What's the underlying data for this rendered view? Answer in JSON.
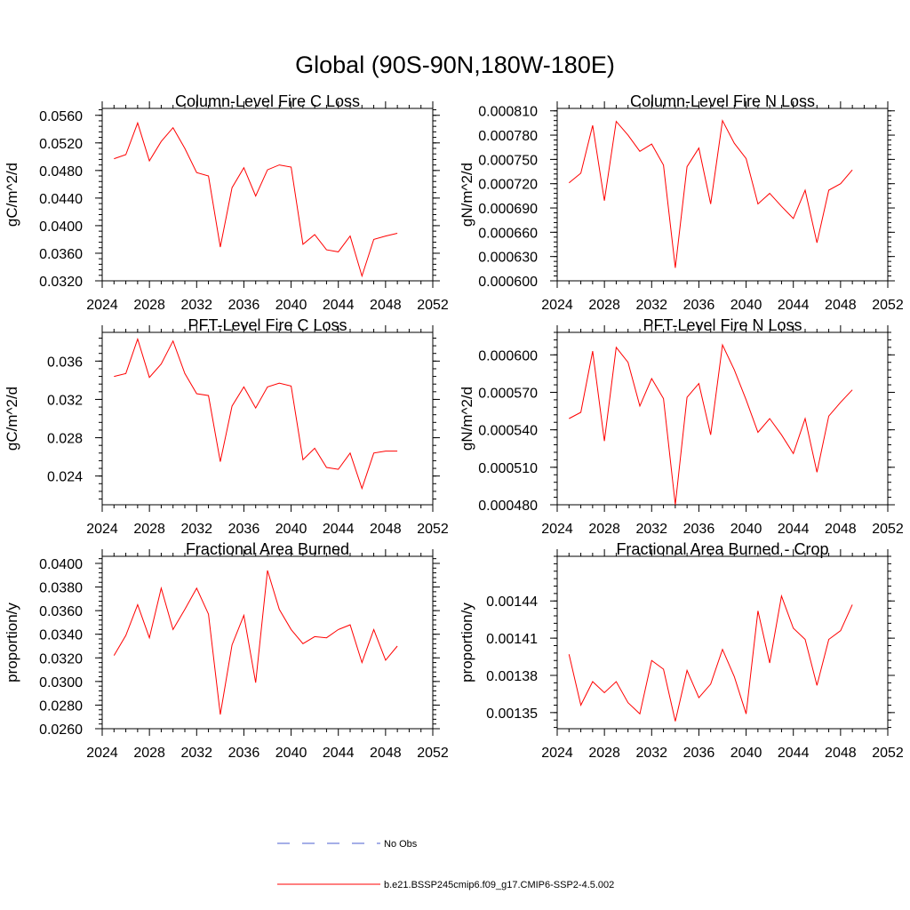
{
  "title": "Global (90S-90N,180W-180E)",
  "legend": [
    {
      "label": "No Obs",
      "color": "#4b5fd1",
      "dashed": true
    },
    {
      "label": "b.e21.BSSP245cmip6.f09_g17.CMIP6-SSP2-4.5.002",
      "color": "#ff0000",
      "dashed": false
    }
  ],
  "chart_data": [
    {
      "type": "line",
      "title": "Column-Level Fire C Loss",
      "xlabel": "",
      "ylabel": "gC/m^2/d",
      "xlim": [
        2024,
        2052
      ],
      "xticks": [
        2024,
        2028,
        2032,
        2036,
        2040,
        2044,
        2048,
        2052
      ],
      "ylim": [
        0.032,
        0.057
      ],
      "yticks": [
        0.032,
        0.036,
        0.04,
        0.044,
        0.048,
        0.052,
        0.056
      ],
      "ytick_labels": [
        "0.0320",
        "0.0360",
        "0.0400",
        "0.0440",
        "0.0480",
        "0.0520",
        "0.0560"
      ],
      "series": [
        {
          "name": "b.e21.BSSP245cmip6.f09_g17.CMIP6-SSP2-4.5.002",
          "x": [
            2025,
            2026,
            2027,
            2028,
            2029,
            2030,
            2031,
            2032,
            2033,
            2034,
            2035,
            2036,
            2037,
            2038,
            2039,
            2040,
            2041,
            2042,
            2043,
            2044,
            2045,
            2046,
            2047,
            2048,
            2049
          ],
          "y": [
            0.0497,
            0.0503,
            0.0549,
            0.0494,
            0.0522,
            0.0542,
            0.0512,
            0.0477,
            0.0472,
            0.0369,
            0.0455,
            0.0484,
            0.0443,
            0.0481,
            0.0488,
            0.0485,
            0.0373,
            0.0387,
            0.0365,
            0.0362,
            0.0385,
            0.0327,
            0.038,
            0.0385,
            0.0389
          ]
        }
      ]
    },
    {
      "type": "line",
      "title": "Column-Level Fire N Loss",
      "xlabel": "",
      "ylabel": "gN/m^2/d",
      "xlim": [
        2024,
        2052
      ],
      "xticks": [
        2024,
        2028,
        2032,
        2036,
        2040,
        2044,
        2048,
        2052
      ],
      "ylim": [
        0.0006,
        0.000813
      ],
      "yticks": [
        0.0006,
        0.00063,
        0.00066,
        0.00069,
        0.00072,
        0.00075,
        0.00078,
        0.00081
      ],
      "ytick_labels": [
        "0.000600",
        "0.000630",
        "0.000660",
        "0.000690",
        "0.000720",
        "0.000750",
        "0.000780",
        "0.000810"
      ],
      "series": [
        {
          "name": "b.e21.BSSP245cmip6.f09_g17.CMIP6-SSP2-4.5.002",
          "x": [
            2025,
            2026,
            2027,
            2028,
            2029,
            2030,
            2031,
            2032,
            2033,
            2034,
            2035,
            2036,
            2037,
            2038,
            2039,
            2040,
            2041,
            2042,
            2043,
            2044,
            2045,
            2046,
            2047,
            2048,
            2049
          ],
          "y": [
            0.000721,
            0.000733,
            0.000792,
            0.000699,
            0.000797,
            0.00078,
            0.00076,
            0.000769,
            0.000743,
            0.000616,
            0.000741,
            0.000764,
            0.000695,
            0.000798,
            0.00077,
            0.000751,
            0.000695,
            0.000708,
            0.000692,
            0.000677,
            0.000712,
            0.000647,
            0.000712,
            0.00072,
            0.000737
          ]
        }
      ]
    },
    {
      "type": "line",
      "title": "PFT-Level Fire C Loss",
      "xlabel": "",
      "ylabel": "gC/m^2/d",
      "xlim": [
        2024,
        2052
      ],
      "xticks": [
        2024,
        2028,
        2032,
        2036,
        2040,
        2044,
        2048,
        2052
      ],
      "ylim": [
        0.021,
        0.039
      ],
      "yticks": [
        0.024,
        0.028,
        0.032,
        0.036
      ],
      "ytick_labels": [
        "0.024",
        "0.028",
        "0.032",
        "0.036"
      ],
      "series": [
        {
          "name": "b.e21.BSSP245cmip6.f09_g17.CMIP6-SSP2-4.5.002",
          "x": [
            2025,
            2026,
            2027,
            2028,
            2029,
            2030,
            2031,
            2032,
            2033,
            2034,
            2035,
            2036,
            2037,
            2038,
            2039,
            2040,
            2041,
            2042,
            2043,
            2044,
            2045,
            2046,
            2047,
            2048,
            2049
          ],
          "y": [
            0.0344,
            0.0347,
            0.0383,
            0.0343,
            0.0357,
            0.0381,
            0.0347,
            0.0326,
            0.0324,
            0.0255,
            0.0313,
            0.0333,
            0.0311,
            0.0333,
            0.0337,
            0.0334,
            0.0257,
            0.0269,
            0.0249,
            0.0247,
            0.0264,
            0.0227,
            0.0264,
            0.0266,
            0.0266
          ]
        }
      ]
    },
    {
      "type": "line",
      "title": "PFT-Level Fire N Loss",
      "xlabel": "",
      "ylabel": "gN/m^2/d",
      "xlim": [
        2024,
        2052
      ],
      "xticks": [
        2024,
        2028,
        2032,
        2036,
        2040,
        2044,
        2048,
        2052
      ],
      "ylim": [
        0.00048,
        0.000618
      ],
      "yticks": [
        0.00048,
        0.00051,
        0.00054,
        0.00057,
        0.0006
      ],
      "ytick_labels": [
        "0.000480",
        "0.000510",
        "0.000540",
        "0.000570",
        "0.000600"
      ],
      "series": [
        {
          "name": "b.e21.BSSP245cmip6.f09_g17.CMIP6-SSP2-4.5.002",
          "x": [
            2025,
            2026,
            2027,
            2028,
            2029,
            2030,
            2031,
            2032,
            2033,
            2034,
            2035,
            2036,
            2037,
            2038,
            2039,
            2040,
            2041,
            2042,
            2043,
            2044,
            2045,
            2046,
            2047,
            2048,
            2049
          ],
          "y": [
            0.000549,
            0.000554,
            0.000603,
            0.000531,
            0.000606,
            0.000594,
            0.000559,
            0.000581,
            0.000565,
            0.00048,
            0.000566,
            0.000577,
            0.000536,
            0.000608,
            0.000588,
            0.000564,
            0.000538,
            0.000549,
            0.000536,
            0.000521,
            0.000549,
            0.000506,
            0.000551,
            0.000562,
            0.000572
          ]
        }
      ]
    },
    {
      "type": "line",
      "title": "Fractional Area Burned",
      "xlabel": "",
      "ylabel": "proportion/y",
      "xlim": [
        2024,
        2052
      ],
      "xticks": [
        2024,
        2028,
        2032,
        2036,
        2040,
        2044,
        2048,
        2052
      ],
      "ylim": [
        0.026,
        0.0406
      ],
      "yticks": [
        0.026,
        0.028,
        0.03,
        0.032,
        0.034,
        0.036,
        0.038,
        0.04
      ],
      "ytick_labels": [
        "0.0260",
        "0.0280",
        "0.0300",
        "0.0320",
        "0.0340",
        "0.0360",
        "0.0380",
        "0.0400"
      ],
      "series": [
        {
          "name": "b.e21.BSSP245cmip6.f09_g17.CMIP6-SSP2-4.5.002",
          "x": [
            2025,
            2026,
            2027,
            2028,
            2029,
            2030,
            2031,
            2032,
            2033,
            2034,
            2035,
            2036,
            2037,
            2038,
            2039,
            2040,
            2041,
            2042,
            2043,
            2044,
            2045,
            2046,
            2047,
            2048,
            2049
          ],
          "y": [
            0.0322,
            0.0339,
            0.0365,
            0.0337,
            0.0379,
            0.0344,
            0.0361,
            0.0379,
            0.0357,
            0.0272,
            0.0331,
            0.0356,
            0.0299,
            0.0394,
            0.0361,
            0.0344,
            0.0332,
            0.0338,
            0.0337,
            0.0344,
            0.0348,
            0.0316,
            0.0344,
            0.0318,
            0.033
          ]
        }
      ]
    },
    {
      "type": "line",
      "title": "Fractional Area Burned - Crop",
      "xlabel": "",
      "ylabel": "proportion/y",
      "xlim": [
        2024,
        2052
      ],
      "xticks": [
        2024,
        2028,
        2032,
        2036,
        2040,
        2044,
        2048,
        2052
      ],
      "ylim": [
        0.001337,
        0.001476
      ],
      "yticks": [
        0.00135,
        0.00138,
        0.00141,
        0.00144
      ],
      "ytick_labels": [
        "0.00135",
        "0.00138",
        "0.00141",
        "0.00144"
      ],
      "series": [
        {
          "name": "b.e21.BSSP245cmip6.f09_g17.CMIP6-SSP2-4.5.002",
          "x": [
            2025,
            2026,
            2027,
            2028,
            2029,
            2030,
            2031,
            2032,
            2033,
            2034,
            2035,
            2036,
            2037,
            2038,
            2039,
            2040,
            2041,
            2042,
            2043,
            2044,
            2045,
            2046,
            2047,
            2048,
            2049
          ],
          "y": [
            0.001397,
            0.001356,
            0.001375,
            0.001366,
            0.001375,
            0.001358,
            0.001349,
            0.001392,
            0.001385,
            0.001343,
            0.001384,
            0.001362,
            0.001373,
            0.001401,
            0.001379,
            0.001349,
            0.001432,
            0.00139,
            0.001444,
            0.001418,
            0.001409,
            0.001372,
            0.001409,
            0.001416,
            0.001437
          ]
        }
      ]
    }
  ]
}
